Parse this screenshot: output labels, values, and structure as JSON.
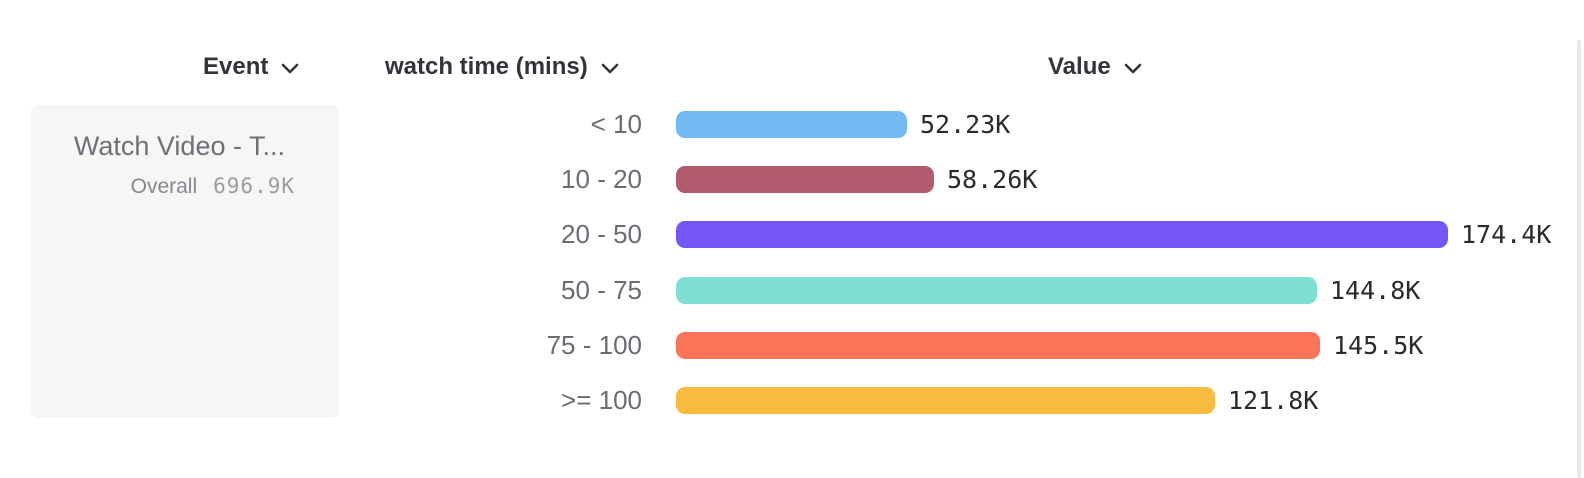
{
  "table": {
    "columns": [
      {
        "label": "Event",
        "icon": "chevron-down-icon"
      },
      {
        "label": "watch time (mins)",
        "icon": "chevron-down-icon"
      },
      {
        "label": "Value",
        "icon": "chevron-down-icon"
      }
    ]
  },
  "event_card": {
    "event_name": "Watch Video - T...",
    "overall_label": "Overall",
    "overall_value": "696.9K"
  },
  "chart_data": {
    "type": "bar",
    "orientation": "horizontal",
    "title": "",
    "xlabel": "watch time (mins)",
    "ylabel": "Value",
    "categories": [
      "< 10",
      "10 - 20",
      "20 - 50",
      "50 - 75",
      "75 - 100",
      ">= 100"
    ],
    "values": [
      52230,
      58260,
      174400,
      144800,
      145500,
      121800
    ],
    "value_labels": [
      "52.23K",
      "58.26K",
      "174.4K",
      "144.8K",
      "145.5K",
      "121.8K"
    ],
    "bar_colors": [
      "#71baf2",
      "#b25a6e",
      "#7456f6",
      "#7ee0d2",
      "#fc7458",
      "#f8bb40"
    ],
    "xlim": [
      0,
      174400
    ],
    "grid": false,
    "legend": false
  },
  "colors": {
    "background": "#ffffff",
    "card_background": "#f6f6f6",
    "header_text": "#33333c",
    "category_text": "#6b6b74",
    "value_text": "#29292f",
    "muted_text": "#9b9ba1"
  }
}
